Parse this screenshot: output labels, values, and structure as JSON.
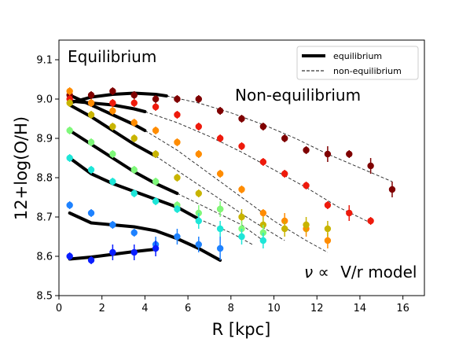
{
  "chart_data": {
    "type": "scatter",
    "title": "",
    "xlabel": "R [kpc]",
    "ylabel": "12+log(O/H)",
    "xlim": [
      0,
      17
    ],
    "ylim": [
      8.5,
      9.15
    ],
    "x_ticks": [
      0,
      2,
      4,
      6,
      8,
      10,
      12,
      14,
      16
    ],
    "y_ticks": [
      8.5,
      8.6,
      8.7,
      8.8,
      8.9,
      9.0,
      9.1
    ],
    "x_tick_labels": [
      "0",
      "2",
      "4",
      "6",
      "8",
      "10",
      "12",
      "14",
      "16"
    ],
    "y_tick_labels": [
      "8.5",
      "8.6",
      "8.7",
      "8.8",
      "8.9",
      "9.0",
      "9.1"
    ],
    "grid": false,
    "legend_position": "top-right",
    "legend": [
      {
        "label": "equilibrium",
        "style": "solid-thick"
      },
      {
        "label": "non-equilibrium",
        "style": "dashed"
      }
    ],
    "annotations": {
      "equilibrium": "Equilibrium",
      "non_equilibrium": "Non-equilibrium",
      "model_prefix": "ν ∝",
      "model_suffix": "V/r model"
    },
    "series": [
      {
        "color": "#7f0000",
        "x": [
          0.5,
          1.5,
          2.5,
          3.5,
          4.5,
          5.5,
          6.5,
          7.5,
          8.5,
          9.5,
          10.5,
          11.5,
          12.5,
          13.5,
          14.5,
          15.5
        ],
        "y": [
          9.01,
          9.01,
          9.02,
          9.01,
          9.0,
          9.0,
          9.0,
          8.97,
          8.95,
          8.93,
          8.9,
          8.87,
          8.86,
          8.86,
          8.83,
          8.77
        ],
        "err": [
          0.01,
          0.01,
          0.01,
          0.01,
          0.01,
          0.01,
          0.01,
          0.01,
          0.01,
          0.01,
          0.01,
          0.01,
          0.02,
          0.01,
          0.02,
          0.02
        ],
        "eq_x": [
          0.5,
          1.5,
          2.5,
          3.5,
          4.5,
          5.0
        ],
        "eq_y": [
          8.99,
          9.005,
          9.012,
          9.015,
          9.012,
          9.008
        ],
        "neq_x": [
          5.0,
          6.5,
          8,
          9.5,
          11,
          12.5,
          14,
          15.5
        ],
        "neq_y": [
          9.008,
          8.99,
          8.965,
          8.935,
          8.9,
          8.86,
          8.825,
          8.79
        ]
      },
      {
        "color": "#ee1a0c",
        "x": [
          0.5,
          1.5,
          2.5,
          3.5,
          4.5,
          5.5,
          6.5,
          7.5,
          8.5,
          9.5,
          10.5,
          11.5,
          12.5,
          13.5,
          14.5
        ],
        "y": [
          9.0,
          8.99,
          8.99,
          8.99,
          8.98,
          8.96,
          8.93,
          8.9,
          8.88,
          8.84,
          8.81,
          8.78,
          8.73,
          8.71,
          8.69
        ],
        "err": [
          0.01,
          0.01,
          0.01,
          0.01,
          0.01,
          0.01,
          0.01,
          0.01,
          0.01,
          0.01,
          0.01,
          0.01,
          0.01,
          0.02,
          0.01
        ],
        "eq_x": [
          0.5,
          1.5,
          2.5,
          3.5,
          4.0
        ],
        "eq_y": [
          8.995,
          8.99,
          8.985,
          8.975,
          8.968
        ],
        "neq_x": [
          4.0,
          5.5,
          7,
          8.5,
          10,
          11.5,
          13,
          14.5
        ],
        "neq_y": [
          8.968,
          8.94,
          8.905,
          8.865,
          8.82,
          8.775,
          8.725,
          8.685
        ]
      },
      {
        "color": "#ff8c00",
        "x": [
          0.5,
          1.5,
          2.5,
          3.5,
          4.5,
          5.5,
          6.5,
          7.5,
          8.5,
          9.5,
          10.5,
          11.5,
          12.5
        ],
        "y": [
          9.02,
          8.99,
          8.97,
          8.94,
          8.92,
          8.89,
          8.86,
          8.81,
          8.77,
          8.71,
          8.69,
          8.67,
          8.64
        ],
        "err": [
          0.01,
          0.01,
          0.01,
          0.01,
          0.01,
          0.01,
          0.01,
          0.01,
          0.01,
          0.01,
          0.02,
          0.02,
          0.02
        ],
        "eq_x": [
          0.5,
          1.5,
          2.5,
          3.5,
          4.0
        ],
        "eq_y": [
          9.01,
          8.985,
          8.96,
          8.935,
          8.92
        ],
        "neq_x": [
          4.0,
          5.5,
          7,
          8.5,
          10,
          11.5,
          12.5
        ],
        "neq_y": [
          8.92,
          8.87,
          8.81,
          8.75,
          8.69,
          8.64,
          8.61
        ]
      },
      {
        "color": "#c8b400",
        "x": [
          0.5,
          1.5,
          2.5,
          3.5,
          4.5,
          5.5,
          6.5,
          7.5,
          8.5,
          9.5,
          10.5,
          11.5,
          12.5
        ],
        "y": [
          8.99,
          8.96,
          8.93,
          8.9,
          8.86,
          8.8,
          8.76,
          8.72,
          8.7,
          8.68,
          8.67,
          8.68,
          8.67
        ],
        "err": [
          0.01,
          0.01,
          0.01,
          0.01,
          0.01,
          0.01,
          0.01,
          0.01,
          0.02,
          0.02,
          0.02,
          0.02,
          0.02
        ],
        "eq_x": [
          0.5,
          1.5,
          2.5,
          3.5,
          4.5
        ],
        "eq_y": [
          8.985,
          8.955,
          8.92,
          8.885,
          8.855
        ],
        "neq_x": [
          4.5,
          6,
          7.5,
          9,
          10.5
        ],
        "neq_y": [
          8.855,
          8.8,
          8.745,
          8.69,
          8.64
        ]
      },
      {
        "color": "#7ff87a",
        "x": [
          0.5,
          1.5,
          2.5,
          3.5,
          4.5,
          5.5,
          6.5,
          7.5,
          8.5,
          9.5
        ],
        "y": [
          8.92,
          8.89,
          8.86,
          8.82,
          8.79,
          8.73,
          8.71,
          8.72,
          8.67,
          8.66
        ],
        "err": [
          0.01,
          0.01,
          0.01,
          0.01,
          0.01,
          0.01,
          0.02,
          0.02,
          0.02,
          0.02
        ],
        "eq_x": [
          0.5,
          1.5,
          2.5,
          3.5,
          4.5,
          5.5
        ],
        "eq_y": [
          8.92,
          8.885,
          8.85,
          8.815,
          8.785,
          8.76
        ],
        "neq_x": [
          5.5,
          7,
          8.5,
          9.5
        ],
        "neq_y": [
          8.76,
          8.72,
          8.68,
          8.64
        ]
      },
      {
        "color": "#1ee6d8",
        "x": [
          0.5,
          1.5,
          2.5,
          3.5,
          4.5,
          5.5,
          6.5,
          7.5,
          8.5,
          9.5
        ],
        "y": [
          8.85,
          8.82,
          8.79,
          8.76,
          8.74,
          8.72,
          8.69,
          8.67,
          8.65,
          8.64
        ],
        "err": [
          0.01,
          0.01,
          0.01,
          0.01,
          0.01,
          0.01,
          0.02,
          0.02,
          0.02,
          0.02
        ],
        "eq_x": [
          0.5,
          1.5,
          2.5,
          3.5,
          4.5,
          5.5,
          6.5
        ],
        "eq_y": [
          8.85,
          8.81,
          8.785,
          8.765,
          8.745,
          8.725,
          8.695
        ],
        "neq_x": [
          6.5,
          8,
          9.0
        ],
        "neq_y": [
          8.695,
          8.66,
          8.63
        ]
      },
      {
        "color": "#1e82ff",
        "x": [
          0.5,
          1.5,
          2.5,
          3.5,
          4.5,
          5.5,
          6.5,
          7.5
        ],
        "y": [
          8.73,
          8.71,
          8.68,
          8.66,
          8.63,
          8.65,
          8.63,
          8.62
        ],
        "err": [
          0.01,
          0.01,
          0.01,
          0.01,
          0.02,
          0.02,
          0.02,
          0.03
        ],
        "eq_x": [
          0.5,
          1.5,
          2.5,
          3.5,
          4.5,
          5.5,
          6.5,
          7.5
        ],
        "eq_y": [
          8.71,
          8.685,
          8.68,
          8.675,
          8.665,
          8.645,
          8.62,
          8.59
        ],
        "neq_x": [],
        "neq_y": []
      },
      {
        "color": "#0a1eff",
        "x": [
          0.5,
          1.5,
          2.5,
          3.5,
          4.5
        ],
        "y": [
          8.6,
          8.59,
          8.61,
          8.61,
          8.62
        ],
        "err": [
          0.01,
          0.01,
          0.02,
          0.02,
          0.02
        ],
        "eq_x": [
          0.5,
          1.5,
          2.5,
          3.5,
          4.5
        ],
        "eq_y": [
          8.593,
          8.598,
          8.605,
          8.612,
          8.618
        ],
        "neq_x": [],
        "neq_y": []
      }
    ]
  }
}
